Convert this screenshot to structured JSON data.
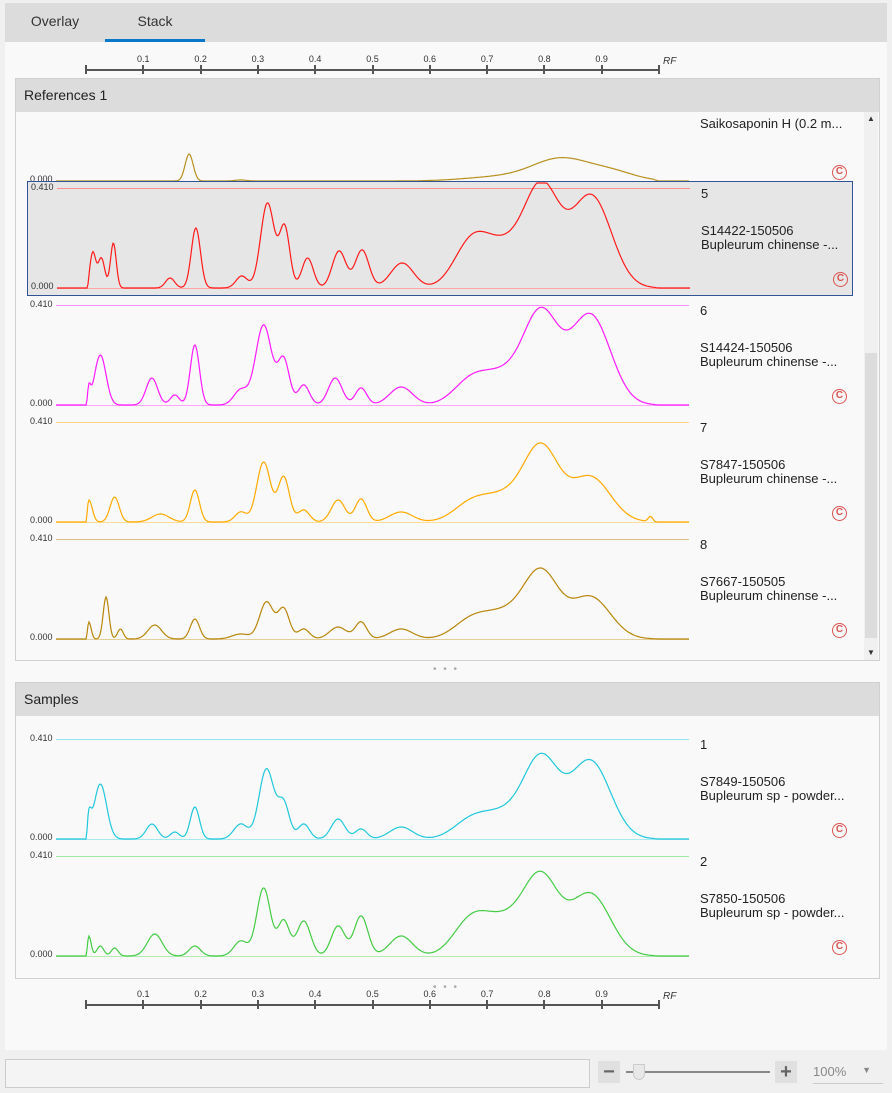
{
  "tabs": [
    {
      "label": "Overlay",
      "active": false
    },
    {
      "label": "Stack",
      "active": true
    }
  ],
  "axis": {
    "ticks": [
      "0.1",
      "0.2",
      "0.3",
      "0.4",
      "0.5",
      "0.6",
      "0.7",
      "0.8",
      "0.9"
    ],
    "unit_label": "RF"
  },
  "references": {
    "title": "References 1",
    "tracks": [
      {
        "number": "",
        "name": "Saikosaponin H (0.2 m...",
        "desc": "",
        "ymax": "",
        "ymin": "0.000",
        "color": "#b8901e",
        "selected": false,
        "peaks": [
          [
            0.18,
            0.27,
            0.007
          ],
          [
            0.27,
            0.01,
            0.01
          ],
          [
            0.72,
            0.04,
            0.06
          ],
          [
            0.83,
            0.22,
            0.05
          ],
          [
            0.92,
            0.08,
            0.04
          ]
        ]
      },
      {
        "number": "5",
        "name": "S14422-150506",
        "desc": "Bupleurum chinense -...",
        "ymax": "0.410",
        "ymin": "0.000",
        "color": "#ff1a1a",
        "selected": true,
        "peaks": [
          [
            0.01,
            0.35,
            0.005
          ],
          [
            0.025,
            0.3,
            0.006
          ],
          [
            0.046,
            0.45,
            0.005
          ],
          [
            0.145,
            0.1,
            0.008
          ],
          [
            0.19,
            0.6,
            0.008
          ],
          [
            0.27,
            0.12,
            0.01
          ],
          [
            0.315,
            0.85,
            0.012
          ],
          [
            0.345,
            0.6,
            0.009
          ],
          [
            0.385,
            0.3,
            0.01
          ],
          [
            0.44,
            0.37,
            0.012
          ],
          [
            0.48,
            0.38,
            0.012
          ],
          [
            0.55,
            0.25,
            0.02
          ],
          [
            0.67,
            0.4,
            0.03
          ],
          [
            0.73,
            0.4,
            0.04
          ],
          [
            0.795,
            0.92,
            0.03
          ],
          [
            0.88,
            0.92,
            0.035
          ]
        ]
      },
      {
        "number": "6",
        "name": "S14424-150506",
        "desc": "Bupleurum chinense -...",
        "ymax": "0.410",
        "ymin": "0.000",
        "color": "#ff1aff",
        "selected": false,
        "peaks": [
          [
            0.005,
            0.15,
            0.003
          ],
          [
            0.025,
            0.5,
            0.01
          ],
          [
            0.115,
            0.27,
            0.01
          ],
          [
            0.155,
            0.1,
            0.008
          ],
          [
            0.19,
            0.6,
            0.008
          ],
          [
            0.27,
            0.15,
            0.012
          ],
          [
            0.31,
            0.8,
            0.014
          ],
          [
            0.345,
            0.45,
            0.01
          ],
          [
            0.38,
            0.2,
            0.01
          ],
          [
            0.435,
            0.27,
            0.012
          ],
          [
            0.48,
            0.17,
            0.01
          ],
          [
            0.55,
            0.18,
            0.02
          ],
          [
            0.67,
            0.2,
            0.03
          ],
          [
            0.73,
            0.3,
            0.04
          ],
          [
            0.795,
            0.85,
            0.03
          ],
          [
            0.88,
            0.9,
            0.035
          ]
        ]
      },
      {
        "number": "7",
        "name": "S7847-150506",
        "desc": "Bupleurum chinense -...",
        "ymax": "0.410",
        "ymin": "0.000",
        "color": "#ffaa00",
        "selected": false,
        "peaks": [
          [
            0.005,
            0.22,
            0.006
          ],
          [
            0.05,
            0.25,
            0.008
          ],
          [
            0.13,
            0.08,
            0.015
          ],
          [
            0.19,
            0.32,
            0.008
          ],
          [
            0.27,
            0.1,
            0.01
          ],
          [
            0.31,
            0.6,
            0.012
          ],
          [
            0.345,
            0.45,
            0.01
          ],
          [
            0.38,
            0.12,
            0.01
          ],
          [
            0.44,
            0.22,
            0.012
          ],
          [
            0.48,
            0.23,
            0.01
          ],
          [
            0.55,
            0.1,
            0.02
          ],
          [
            0.67,
            0.15,
            0.03
          ],
          [
            0.73,
            0.25,
            0.04
          ],
          [
            0.795,
            0.7,
            0.03
          ],
          [
            0.88,
            0.45,
            0.035
          ],
          [
            0.985,
            0.05,
            0.004
          ]
        ]
      },
      {
        "number": "8",
        "name": "S7667-150505",
        "desc": "Bupleurum chinense -...",
        "ymax": "0.410",
        "ymin": "0.000",
        "color": "#b8860b",
        "selected": false,
        "peaks": [
          [
            0.005,
            0.17,
            0.004
          ],
          [
            0.035,
            0.42,
            0.005
          ],
          [
            0.06,
            0.1,
            0.005
          ],
          [
            0.12,
            0.14,
            0.012
          ],
          [
            0.19,
            0.2,
            0.008
          ],
          [
            0.27,
            0.05,
            0.015
          ],
          [
            0.315,
            0.37,
            0.012
          ],
          [
            0.345,
            0.3,
            0.01
          ],
          [
            0.38,
            0.1,
            0.01
          ],
          [
            0.44,
            0.12,
            0.015
          ],
          [
            0.48,
            0.17,
            0.01
          ],
          [
            0.55,
            0.1,
            0.02
          ],
          [
            0.67,
            0.15,
            0.03
          ],
          [
            0.73,
            0.25,
            0.04
          ],
          [
            0.795,
            0.62,
            0.03
          ],
          [
            0.88,
            0.42,
            0.035
          ]
        ]
      }
    ]
  },
  "samples": {
    "title": "Samples",
    "tracks": [
      {
        "number": "1",
        "name": "S7849-150506",
        "desc": "Bupleurum sp - powder...",
        "ymax": "0.410",
        "ymin": "0.000",
        "color": "#20c8dc",
        "selected": false,
        "peaks": [
          [
            0.005,
            0.2,
            0.004
          ],
          [
            0.025,
            0.55,
            0.011
          ],
          [
            0.115,
            0.15,
            0.01
          ],
          [
            0.155,
            0.07,
            0.008
          ],
          [
            0.19,
            0.32,
            0.008
          ],
          [
            0.27,
            0.15,
            0.012
          ],
          [
            0.315,
            0.7,
            0.013
          ],
          [
            0.345,
            0.35,
            0.01
          ],
          [
            0.38,
            0.15,
            0.01
          ],
          [
            0.44,
            0.2,
            0.012
          ],
          [
            0.48,
            0.1,
            0.01
          ],
          [
            0.55,
            0.12,
            0.02
          ],
          [
            0.67,
            0.15,
            0.03
          ],
          [
            0.73,
            0.25,
            0.04
          ],
          [
            0.795,
            0.75,
            0.03
          ],
          [
            0.88,
            0.78,
            0.035
          ]
        ]
      },
      {
        "number": "2",
        "name": "S7850-150506",
        "desc": "Bupleurum sp - powder...",
        "ymax": "0.410",
        "ymin": "0.000",
        "color": "#44cc44",
        "selected": false,
        "peaks": [
          [
            0.005,
            0.2,
            0.004
          ],
          [
            0.025,
            0.1,
            0.006
          ],
          [
            0.05,
            0.08,
            0.006
          ],
          [
            0.12,
            0.22,
            0.013
          ],
          [
            0.19,
            0.1,
            0.01
          ],
          [
            0.27,
            0.15,
            0.012
          ],
          [
            0.31,
            0.68,
            0.012
          ],
          [
            0.345,
            0.35,
            0.01
          ],
          [
            0.38,
            0.35,
            0.012
          ],
          [
            0.44,
            0.3,
            0.012
          ],
          [
            0.48,
            0.4,
            0.012
          ],
          [
            0.55,
            0.2,
            0.02
          ],
          [
            0.67,
            0.3,
            0.03
          ],
          [
            0.73,
            0.35,
            0.04
          ],
          [
            0.795,
            0.72,
            0.03
          ],
          [
            0.88,
            0.62,
            0.035
          ]
        ]
      }
    ]
  },
  "footer": {
    "zoom_value": "100%",
    "zoom_level": 0.05
  }
}
